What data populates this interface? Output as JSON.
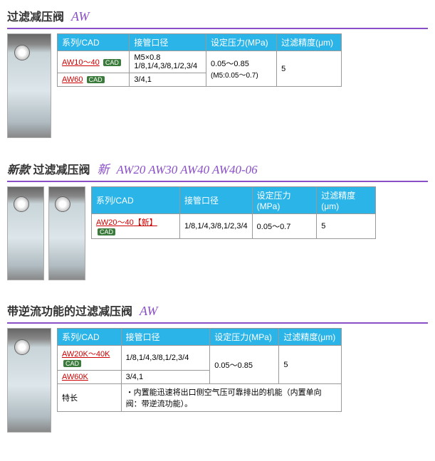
{
  "colors": {
    "accent": "#8a4fc7",
    "header_bg": "#2bb4e8",
    "link": "#c00",
    "cad_bg": "#3a7a3a",
    "border": "#999"
  },
  "sections": [
    {
      "title_cn": "过滤减压阀",
      "title_en": "AW",
      "images": 1,
      "table": {
        "headers": [
          "系列/CAD",
          "接管口径",
          "设定压力(MPa)",
          "过滤精度(μm)"
        ],
        "rows": [
          {
            "series": "AW10～40",
            "cad": true,
            "port": "M5×0.8\n1/8,1/4,3/8,1/2,3/4",
            "pressure": "0.05～0.85\n(M5:0.05～0.7)",
            "precision": "5",
            "rowspan_pressure": 1,
            "rowspan_precision": 2
          },
          {
            "series": "AW60",
            "cad": true,
            "port": "3/4,1"
          }
        ]
      }
    },
    {
      "title_prefix": "新款",
      "title_cn": "过滤减压阀",
      "title_new": "新",
      "models": "AW20 AW30 AW40 AW40-06",
      "images": 2,
      "table": {
        "headers": [
          "系列/CAD",
          "接管口径",
          "设定压力(MPa)",
          "过滤精度(μm)"
        ],
        "rows": [
          {
            "series": "AW20～40",
            "new": true,
            "cad": true,
            "port": "1/8,1/4,3/8,1/2,3/4",
            "pressure": "0.05～0.7",
            "precision": "5"
          }
        ]
      }
    },
    {
      "title_cn": "带逆流功能的过滤减压阀",
      "title_en": "AW",
      "images": 1,
      "table": {
        "headers": [
          "系列/CAD",
          "接管口径",
          "设定压力(MPa)",
          "过滤精度(μm)"
        ],
        "rows": [
          {
            "series": "AW20K～40K",
            "cad": true,
            "port": "1/8,1/4,3/8,1/2,3/4",
            "pressure": "0.05～0.85",
            "precision": "5",
            "rowspan_pressure": 2,
            "rowspan_precision": 2
          },
          {
            "series": "AW60K",
            "port": "3/4,1"
          }
        ],
        "feature_label": "特长",
        "feature_text": "・内置能迅速将出口侧空气压可靠排出的机能（内置单向阀：带逆流功能）。"
      }
    }
  ],
  "cad_label": "CAD",
  "new_label": "【新】"
}
